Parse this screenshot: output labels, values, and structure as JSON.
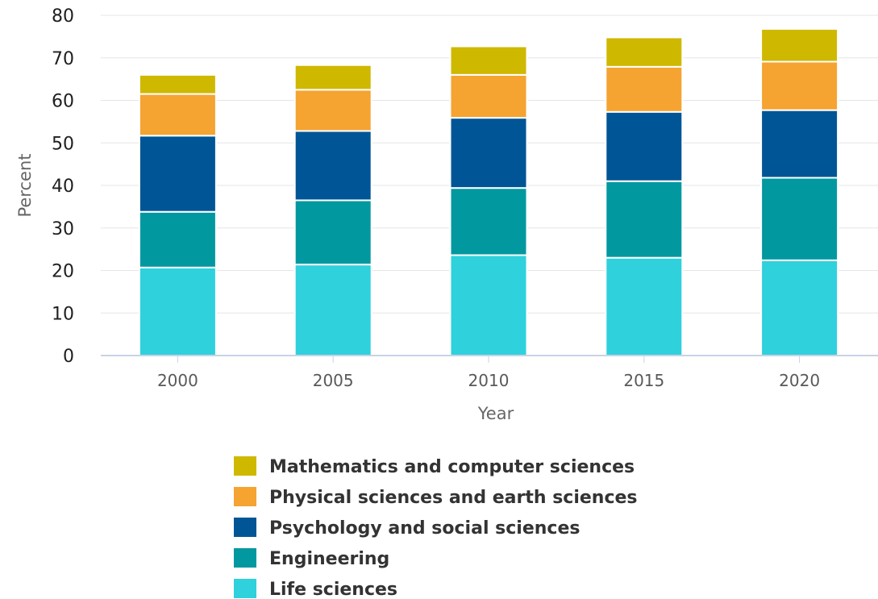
{
  "chart_data": {
    "type": "bar",
    "stacked": true,
    "title": "",
    "xlabel": "Year",
    "ylabel": "Percent",
    "ylim": [
      0,
      80
    ],
    "yticks": [
      "0",
      "10",
      "20",
      "30",
      "40",
      "50",
      "60",
      "70",
      "80"
    ],
    "categories": [
      "2000",
      "2005",
      "2010",
      "2015",
      "2020"
    ],
    "grid": "horizontal",
    "legend_position": "bottom",
    "series": [
      {
        "name": "Life sciences",
        "color": "#2ed1dc",
        "values": [
          20.7,
          21.4,
          23.6,
          23.0,
          22.4
        ]
      },
      {
        "name": "Engineering",
        "color": "#02989f",
        "values": [
          13.1,
          15.1,
          15.8,
          18.0,
          19.4
        ]
      },
      {
        "name": "Psychology and social sciences",
        "color": "#005596",
        "values": [
          17.9,
          16.3,
          16.5,
          16.3,
          15.9
        ]
      },
      {
        "name": "Physical sciences and earth sciences",
        "color": "#f5a331",
        "values": [
          9.8,
          9.7,
          10.1,
          10.6,
          11.4
        ]
      },
      {
        "name": "Mathematics and computer sciences",
        "color": "#cfb800",
        "values": [
          4.5,
          5.8,
          6.7,
          6.9,
          7.7
        ]
      }
    ],
    "legend_order": [
      "Mathematics and computer sciences",
      "Physical sciences and earth sciences",
      "Psychology and social sciences",
      "Engineering",
      "Life sciences"
    ]
  }
}
